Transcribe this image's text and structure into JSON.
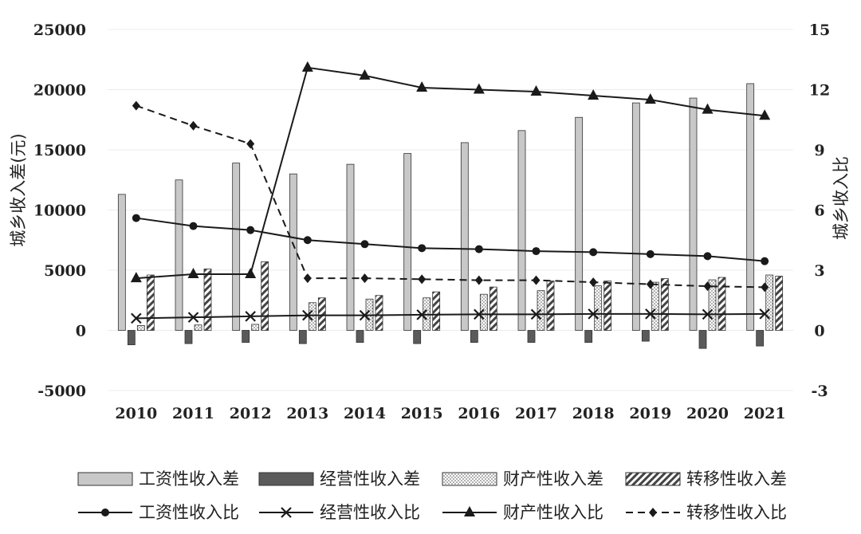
{
  "chart_data": {
    "type": "bar",
    "categories": [
      "2010",
      "2011",
      "2012",
      "2013",
      "2014",
      "2015",
      "2016",
      "2017",
      "2018",
      "2019",
      "2020",
      "2021"
    ],
    "left_axis": {
      "label": "城乡收入差(元)",
      "ylim": [
        -5000,
        25000
      ],
      "ticks": [
        "-5000",
        "0",
        "5000",
        "10000",
        "15000",
        "20000",
        "25000"
      ]
    },
    "right_axis": {
      "label": "城乡收入比",
      "ylim": [
        -3,
        15
      ],
      "ticks": [
        "-3",
        "0",
        "3",
        "6",
        "9",
        "12",
        "15"
      ]
    },
    "bar_series": [
      {
        "name": "工资性收入差",
        "pattern": "solid-light",
        "values": [
          11300,
          12500,
          13900,
          13000,
          13800,
          14700,
          15600,
          16600,
          17700,
          18900,
          19300,
          20500
        ]
      },
      {
        "name": "经营性收入差",
        "pattern": "solid-dark",
        "values": [
          -1200,
          -1100,
          -1000,
          -1100,
          -1000,
          -1100,
          -1000,
          -1000,
          -1000,
          -900,
          -1500,
          -1300
        ]
      },
      {
        "name": "财产性收入差",
        "pattern": "dotted",
        "values": [
          400,
          450,
          500,
          2300,
          2600,
          2700,
          3000,
          3300,
          3700,
          4000,
          4200,
          4600
        ]
      },
      {
        "name": "转移性收入差",
        "pattern": "hatched",
        "values": [
          4600,
          5100,
          5700,
          2700,
          2900,
          3200,
          3600,
          4100,
          4100,
          4300,
          4400,
          4500
        ]
      }
    ],
    "line_series": [
      {
        "name": "工资性收入比",
        "marker": "circle",
        "dash": "solid",
        "values": [
          5.6,
          5.2,
          5.0,
          4.5,
          4.3,
          4.1,
          4.05,
          3.95,
          3.9,
          3.8,
          3.7,
          3.45
        ]
      },
      {
        "name": "经营性收入比",
        "marker": "x",
        "dash": "solid",
        "values": [
          0.6,
          0.65,
          0.7,
          0.75,
          0.75,
          0.78,
          0.8,
          0.8,
          0.82,
          0.82,
          0.8,
          0.82
        ]
      },
      {
        "name": "财产性收入比",
        "marker": "triangle",
        "dash": "solid",
        "values": [
          2.6,
          2.8,
          2.8,
          13.1,
          12.7,
          12.1,
          12.0,
          11.9,
          11.7,
          11.5,
          11.0,
          10.7
        ]
      },
      {
        "name": "转移性收入比",
        "marker": "diamond",
        "dash": "dashed",
        "values": [
          11.2,
          10.2,
          9.3,
          2.6,
          2.6,
          2.55,
          2.5,
          2.5,
          2.4,
          2.3,
          2.2,
          2.15
        ]
      }
    ],
    "legend": [
      "工资性收入差",
      "经营性收入差",
      "财产性收入差",
      "转移性收入差",
      "工资性收入比",
      "经营性收入比",
      "财产性收入比",
      "转移性收入比"
    ],
    "legend_position": "bottom",
    "grid": true,
    "colors": {
      "light_bar": "#c8c8c8",
      "dark_bar": "#5a5a5a",
      "line": "#1a1a1a",
      "grid": "#ececec",
      "outline": "#333333"
    }
  }
}
